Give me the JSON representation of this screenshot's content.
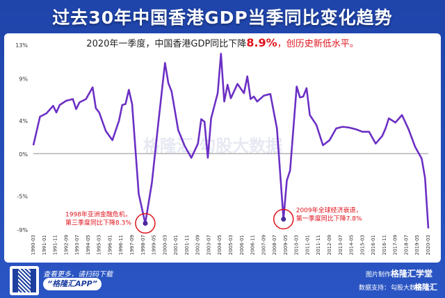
{
  "page": {
    "title": "过去30年中国香港GDP当季同比变化趋势",
    "subtitle": {
      "prefix": "2020年一季度，中国香港GDP同比下降",
      "value": "8.9%",
      "suffix": "，创历史新低水平。"
    }
  },
  "chart_data": {
    "type": "line",
    "title": "过去30年中国香港GDP当季同比变化趋势",
    "xlabel": "",
    "ylabel": "",
    "ylim": [
      -9,
      13
    ],
    "yticks": [
      "13%",
      "9%",
      "4%",
      "0%",
      "-5%",
      "-9%"
    ],
    "ytick_values": [
      13,
      9,
      4,
      0,
      -5,
      -9
    ],
    "grid": false,
    "xtick_labels": [
      "1990-03",
      "1991-01",
      "1991-11",
      "1992-09",
      "1993-07",
      "1994-05",
      "1995-03",
      "1996-01",
      "1996-11",
      "1997-09",
      "1998-07",
      "1999-05",
      "2000-03",
      "2001-01",
      "2001-11",
      "2002-09",
      "2003-07",
      "2004-05",
      "2005-03",
      "2006-01",
      "2006-11",
      "2007-09",
      "2008-07",
      "2009-05",
      "2010-03",
      "2011-01",
      "2011-11",
      "2012-09",
      "2013-07",
      "2014-05",
      "2015-03",
      "2016-01",
      "2016-11",
      "2017-09",
      "2018-07",
      "2019-05",
      "2020-03"
    ],
    "x": [
      1990.0,
      1990.5,
      1991.0,
      1991.5,
      1991.75,
      1992.0,
      1992.5,
      1993.0,
      1993.25,
      1993.5,
      1994.0,
      1994.5,
      1994.75,
      1995.0,
      1995.5,
      1996.0,
      1996.5,
      1996.75,
      1997.0,
      1997.25,
      1997.5,
      1998.0,
      1998.5,
      1999.0,
      1999.5,
      2000.0,
      2000.25,
      2000.5,
      2001.0,
      2001.5,
      2002.0,
      2002.5,
      2002.75,
      2003.0,
      2003.25,
      2003.5,
      2004.0,
      2004.25,
      2004.5,
      2004.75,
      2005.0,
      2005.5,
      2006.0,
      2006.25,
      2006.5,
      2006.75,
      2007.0,
      2007.5,
      2008.0,
      2008.5,
      2009.0,
      2009.25,
      2009.5,
      2010.0,
      2010.25,
      2010.5,
      2010.75,
      2011.0,
      2011.5,
      2012.0,
      2012.5,
      2013.0,
      2013.5,
      2014.0,
      2014.5,
      2015.0,
      2015.5,
      2016.0,
      2016.5,
      2016.75,
      2017.0,
      2017.5,
      2018.0,
      2018.5,
      2019.0,
      2019.5,
      2019.75,
      2020.0
    ],
    "series": [
      {
        "color": "#6b2fc4",
        "values": [
          1.0,
          4.4,
          4.8,
          5.7,
          4.9,
          5.8,
          6.3,
          6.5,
          5.3,
          6.1,
          6.5,
          7.9,
          5.4,
          4.9,
          2.7,
          1.6,
          3.9,
          5.8,
          5.9,
          7.6,
          5.9,
          -4.8,
          -8.3,
          -3.5,
          3.8,
          10.8,
          8.4,
          7.4,
          2.8,
          0.9,
          -0.5,
          1.2,
          4.1,
          3.8,
          -0.5,
          4.2,
          7.2,
          11.9,
          6.2,
          8.2,
          6.6,
          8.3,
          7.2,
          9.2,
          6.5,
          6.8,
          6.2,
          6.9,
          7.1,
          3.0,
          -7.8,
          -3.2,
          -2.0,
          8.0,
          6.7,
          6.8,
          7.8,
          4.6,
          3.4,
          1.0,
          1.6,
          3.0,
          3.2,
          3.1,
          2.9,
          2.6,
          2.6,
          1.2,
          2.1,
          3.0,
          4.2,
          3.7,
          4.6,
          2.9,
          0.8,
          -0.6,
          -2.9,
          -8.9
        ]
      }
    ],
    "annotations": [
      {
        "text_line1": "1998年亚洲金融危机，",
        "text_line2": "第三季度同比下降8.3%",
        "x": 1998.5,
        "y": -8.3
      },
      {
        "text_line1": "2009年全球经济衰退，",
        "text_line2": "第一季度同比下降7.8%",
        "x": 2009.0,
        "y": -7.8
      }
    ],
    "watermark": "格隆汇 勾股大数据"
  },
  "footer": {
    "scan_text": "查看更多，请扫码下载",
    "app_label": "“格隆汇APP”",
    "made_by": "图片制作：",
    "made_by_brand": "格隆汇学堂",
    "data_source": "数据支持：",
    "data_brand": "勾股大数据",
    "logo": "格隆汇"
  },
  "colors": {
    "background": "#1f44aa",
    "line": "#6b2fc4",
    "highlight": "#e0121b"
  }
}
